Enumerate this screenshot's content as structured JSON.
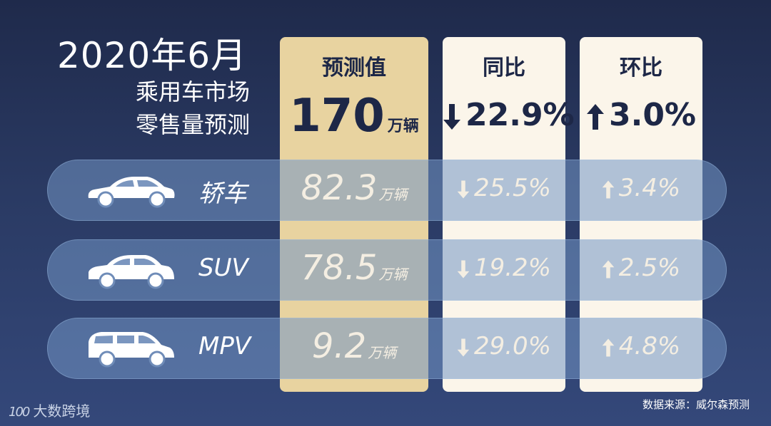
{
  "title": {
    "main": "2020年6月",
    "sub1": "乘用车市场",
    "sub2": "零售量预测"
  },
  "columns": {
    "forecast": "预测值",
    "yoy": "同比",
    "mom": "环比"
  },
  "totals": {
    "forecast_value": "170",
    "forecast_unit": "万辆",
    "yoy": "22.9%",
    "yoy_direction": "down",
    "mom": "3.0%",
    "mom_direction": "up"
  },
  "rows": [
    {
      "label": "轿车",
      "icon": "sedan-icon",
      "value": "82.3",
      "unit": "万辆",
      "yoy": "25.5%",
      "yoy_direction": "down",
      "mom": "3.4%",
      "mom_direction": "up"
    },
    {
      "label": "SUV",
      "icon": "suv-icon",
      "value": "78.5",
      "unit": "万辆",
      "yoy": "19.2%",
      "yoy_direction": "down",
      "mom": "2.5%",
      "mom_direction": "up"
    },
    {
      "label": "MPV",
      "icon": "mpv-icon",
      "value": "9.2",
      "unit": "万辆",
      "yoy": "29.0%",
      "yoy_direction": "down",
      "mom": "4.8%",
      "mom_direction": "up"
    }
  ],
  "footer": {
    "logo_mark": "100",
    "logo_text": "大数跨境",
    "source": "数据来源：威尔森预测"
  },
  "colors": {
    "background": "#2a3a63",
    "forecast_column": "#e8d3a0",
    "rate_column": "#fbf5ea",
    "row_band": "#7296c4",
    "dark_text": "#1d2747"
  }
}
